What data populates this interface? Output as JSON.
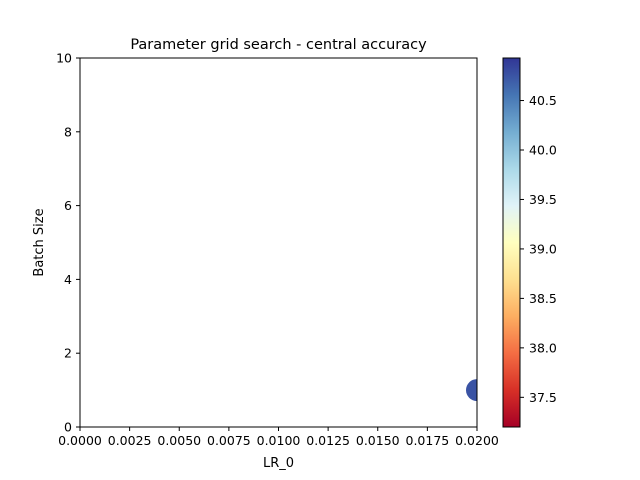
{
  "chart_data": {
    "type": "scatter",
    "title": "Parameter grid search - central accuracy",
    "xlabel": "LR_0",
    "ylabel": "Batch Size",
    "xlim": [
      0,
      0.02
    ],
    "ylim": [
      0,
      10
    ],
    "x_ticks": [
      "0.0000",
      "0.0025",
      "0.0050",
      "0.0075",
      "0.0100",
      "0.0125",
      "0.0150",
      "0.0175",
      "0.0200"
    ],
    "y_ticks": [
      "0",
      "2",
      "4",
      "6",
      "8",
      "10"
    ],
    "grid": false,
    "points": [
      {
        "x": 0.02,
        "y": 1,
        "value": 40.9
      }
    ],
    "colorbar": {
      "colormap": "RdYlBu",
      "range": [
        37.2,
        40.93
      ],
      "ticks": [
        "37.5",
        "38.0",
        "38.5",
        "39.0",
        "39.5",
        "40.0",
        "40.5"
      ],
      "colors": [
        "#a50026",
        "#d73027",
        "#f46d43",
        "#fdae61",
        "#fee090",
        "#ffffbf",
        "#e0f3f8",
        "#abd9e9",
        "#74add1",
        "#4575b4",
        "#313695"
      ]
    },
    "point_color": "#3a53a4"
  }
}
